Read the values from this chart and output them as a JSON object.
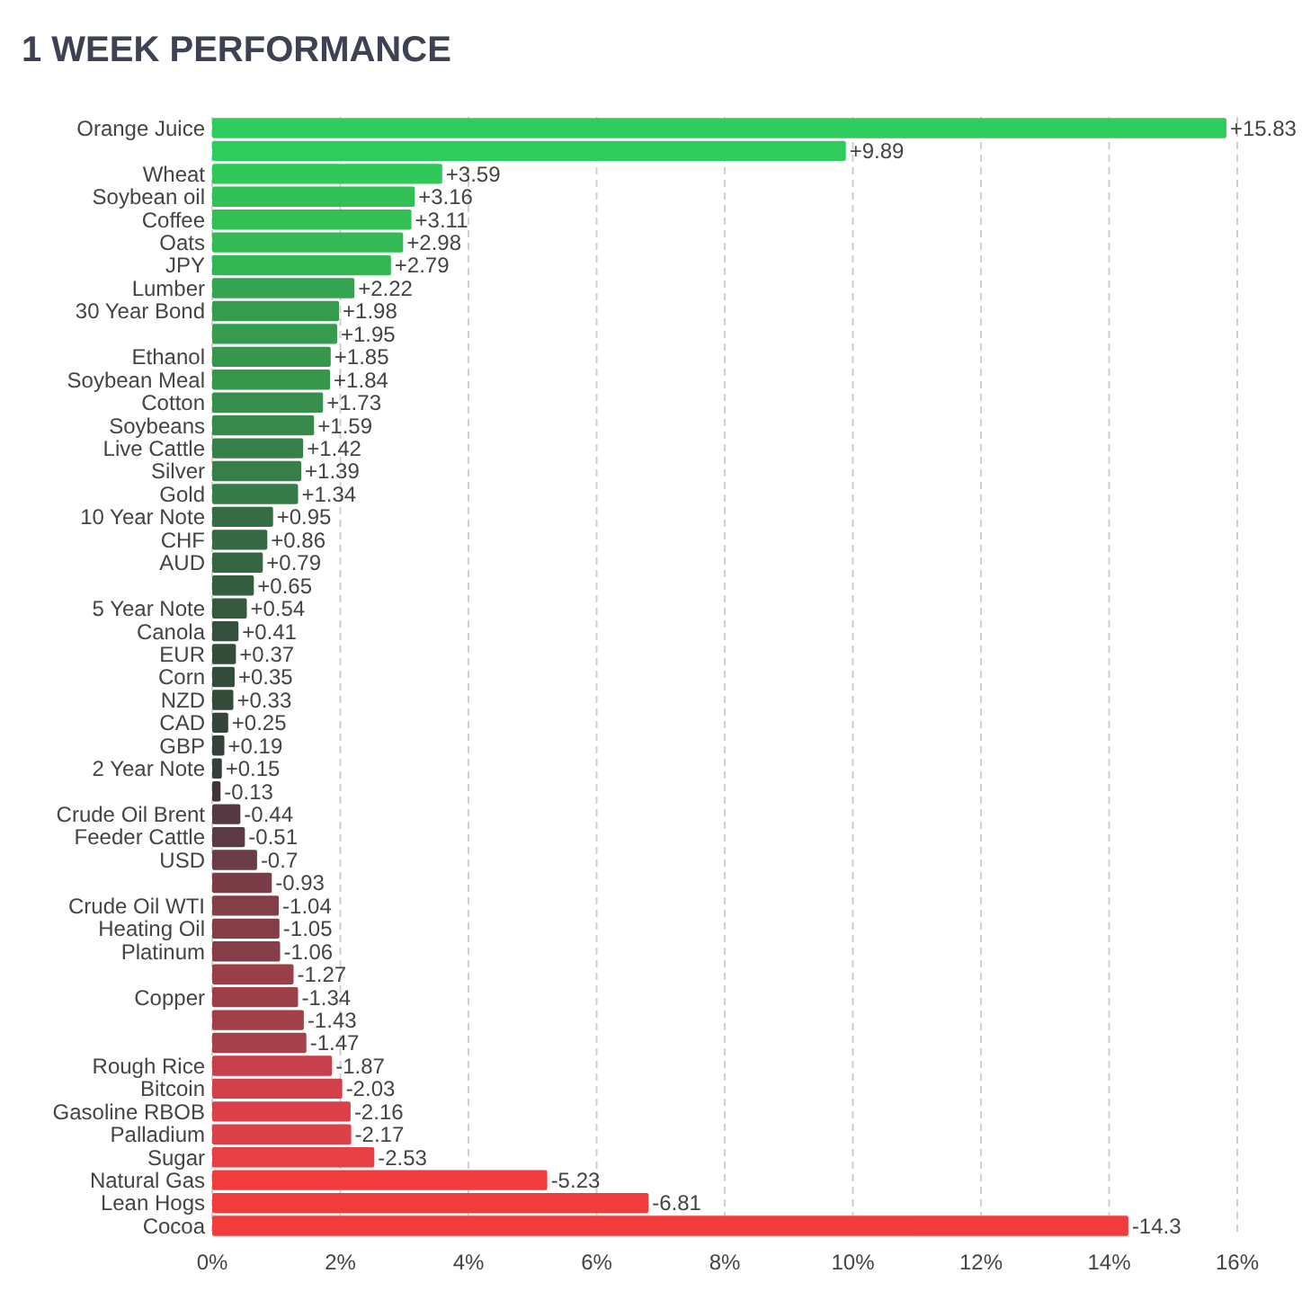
{
  "chart_data": {
    "type": "bar",
    "orientation": "horizontal",
    "title": "1 WEEK PERFORMANCE",
    "categories": [
      "Orange Juice",
      null,
      "Wheat",
      "Soybean oil",
      "Coffee",
      "Oats",
      "JPY",
      "Lumber",
      "30 Year Bond",
      null,
      "Ethanol",
      "Soybean Meal",
      "Cotton",
      "Soybeans",
      "Live Cattle",
      "Silver",
      "Gold",
      "10 Year Note",
      "CHF",
      "AUD",
      null,
      "5 Year Note",
      "Canola",
      "EUR",
      "Corn",
      "NZD",
      "CAD",
      "GBP",
      "2 Year Note",
      null,
      "Crude Oil Brent",
      "Feeder Cattle",
      "USD",
      null,
      "Crude Oil WTI",
      "Heating Oil",
      "Platinum",
      null,
      "Copper",
      null,
      null,
      "Rough Rice",
      "Bitcoin",
      "Gasoline RBOB",
      "Palladium",
      "Sugar",
      "Natural Gas",
      "Lean Hogs",
      "Cocoa"
    ],
    "values": [
      15.83,
      9.89,
      3.59,
      3.16,
      3.11,
      2.98,
      2.79,
      2.22,
      1.98,
      1.95,
      1.85,
      1.84,
      1.73,
      1.59,
      1.42,
      1.39,
      1.34,
      0.95,
      0.86,
      0.79,
      0.65,
      0.54,
      0.41,
      0.37,
      0.35,
      0.33,
      0.25,
      0.19,
      0.15,
      -0.13,
      -0.44,
      -0.51,
      -0.7,
      -0.93,
      -1.04,
      -1.05,
      -1.06,
      -1.27,
      -1.34,
      -1.43,
      -1.47,
      -1.87,
      -2.03,
      -2.16,
      -2.17,
      -2.53,
      -5.23,
      -6.81,
      -14.3
    ],
    "base": [
      0,
      0,
      0,
      0,
      0,
      0,
      0,
      0,
      0,
      0,
      0,
      0,
      0,
      0,
      0,
      0,
      0,
      0,
      0,
      0,
      0,
      0,
      0,
      0,
      0,
      0,
      0,
      0,
      0,
      0.13,
      0.44,
      0.51,
      0.7,
      0.93,
      1.04,
      1.05,
      1.06,
      1.27,
      1.34,
      1.43,
      1.47,
      1.87,
      2.03,
      2.16,
      2.17,
      2.53,
      5.23,
      6.81,
      14.3
    ],
    "value_labels": [
      "+15.83",
      "+9.89",
      "+3.59",
      "+3.16",
      "+3.11",
      "+2.98",
      "+2.79",
      "+2.22",
      "+1.98",
      "+1.95",
      "+1.85",
      "+1.84",
      "+1.73",
      "+1.59",
      "+1.42",
      "+1.39",
      "+1.34",
      "+0.95",
      "+0.86",
      "+0.79",
      "+0.65",
      "+0.54",
      "+0.41",
      "+0.37",
      "+0.35",
      "+0.33",
      "+0.25",
      "+0.19",
      "+0.15",
      "-0.13",
      "-0.44",
      "-0.51",
      "-0.7",
      "-0.93",
      "-1.04",
      "-1.05",
      "-1.06",
      "-1.27",
      "-1.34",
      "-1.43",
      "-1.47",
      "-1.87",
      "-2.03",
      "-2.16",
      "-2.17",
      "-2.53",
      "-5.23",
      "-6.81",
      "-14.3"
    ],
    "colors": [
      "#2ecc5c",
      "#2ecc5c",
      "#30c858",
      "#31c056",
      "#31bf56",
      "#32bb55",
      "#33b553",
      "#34a450",
      "#359c4d",
      "#359b4d",
      "#36974c",
      "#36964c",
      "#36904b",
      "#37894a",
      "#378049",
      "#377e48",
      "#377b48",
      "#366c44",
      "#366843",
      "#366542",
      "#355e40",
      "#35583e",
      "#34503c",
      "#344d3b",
      "#344c3b",
      "#344b3a",
      "#34463a",
      "#344239",
      "#343f38",
      "#41353b",
      "#563a43",
      "#5c3a44",
      "#6a3c46",
      "#7a3d48",
      "#843e48",
      "#853e48",
      "#863e48",
      "#983f48",
      "#9c3f48",
      "#a33f49",
      "#a6404a",
      "#c5404a",
      "#d2404a",
      "#dc4049",
      "#dc4049",
      "#e63f46",
      "#f03c3c",
      "#f03c3c",
      "#f03c3c"
    ],
    "xlim": [
      0,
      16
    ],
    "xticks": [
      {
        "value": 0,
        "label": "0%"
      },
      {
        "value": 2,
        "label": "2%"
      },
      {
        "value": 4,
        "label": "4%"
      },
      {
        "value": 6,
        "label": "6%"
      },
      {
        "value": 8,
        "label": "8%"
      },
      {
        "value": 10,
        "label": "10%"
      },
      {
        "value": 12,
        "label": "12%"
      },
      {
        "value": 14,
        "label": "14%"
      },
      {
        "value": 16,
        "label": "16%"
      }
    ],
    "grid": "x"
  }
}
